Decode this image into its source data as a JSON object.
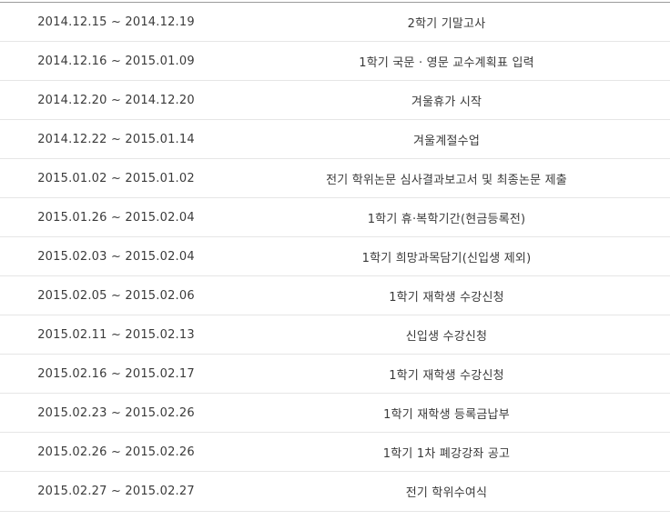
{
  "schedule": {
    "rows": [
      {
        "date": "2014.12.15 ~ 2014.12.19",
        "event": "2학기 기말고사"
      },
      {
        "date": "2014.12.16 ~ 2015.01.09",
        "event": "1학기 국문 · 영문 교수계획표 입력"
      },
      {
        "date": "2014.12.20 ~ 2014.12.20",
        "event": "겨울휴가 시작"
      },
      {
        "date": "2014.12.22 ~ 2015.01.14",
        "event": "겨울계절수업"
      },
      {
        "date": "2015.01.02 ~ 2015.01.02",
        "event": "전기 학위논문 심사결과보고서 및 최종논문 제출"
      },
      {
        "date": "2015.01.26 ~ 2015.02.04",
        "event": "1학기 휴·복학기간(현금등록전)"
      },
      {
        "date": "2015.02.03 ~ 2015.02.04",
        "event": "1학기 희망과목담기(신입생 제외)"
      },
      {
        "date": "2015.02.05 ~ 2015.02.06",
        "event": "1학기 재학생 수강신청"
      },
      {
        "date": "2015.02.11 ~ 2015.02.13",
        "event": "신입생 수강신청"
      },
      {
        "date": "2015.02.16 ~ 2015.02.17",
        "event": "1학기 재학생 수강신청"
      },
      {
        "date": "2015.02.23 ~ 2015.02.26",
        "event": "1학기 재학생 등록금납부"
      },
      {
        "date": "2015.02.26 ~ 2015.02.26",
        "event": "1학기 1차 폐강강좌 공고"
      },
      {
        "date": "2015.02.27 ~ 2015.02.27",
        "event": "전기 학위수여식"
      }
    ]
  }
}
